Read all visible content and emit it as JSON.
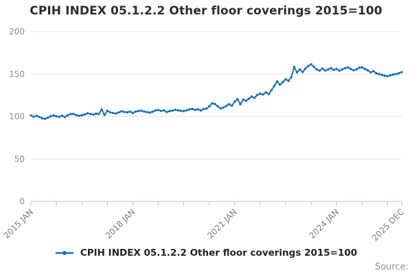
{
  "title": "CPIH INDEX 05.1.2.2 Other floor coverings 2015=100",
  "legend": {
    "label": "CPIH INDEX 05.1.2.2 Other floor coverings 2015=100"
  },
  "source_label": "Source:",
  "colors": {
    "line": "#1871b5",
    "grid": "#e5e5e5",
    "axis": "#b3bfd8",
    "y_tick_label": "#898989",
    "x_tick_label": "#7c7c7c",
    "title_text": "#2d2d2d"
  },
  "chart_data": {
    "type": "line",
    "title": "CPIH INDEX 05.1.2.2 Other floor coverings 2015=100",
    "xlabel": "",
    "ylabel": "",
    "grid": true,
    "legend_position": "bottom",
    "ylim": [
      0,
      200
    ],
    "y_ticks": [
      0,
      50,
      100,
      150,
      200
    ],
    "x_start": "2015 JAN",
    "x_end": "2025 DEC",
    "x_frequency": "monthly",
    "x_tick_labels": [
      "2015 JAN",
      "2018 JAN",
      "2021 JAN",
      "2024 JAN",
      "2025 DEC"
    ],
    "x_tick_month_offsets": [
      0,
      36,
      72,
      108,
      131
    ],
    "minor_tick_every_months": 9,
    "series": [
      {
        "name": "CPIH INDEX 05.1.2.2 Other floor coverings 2015=100",
        "start": "2015 JAN",
        "values": [
          101.3,
          99.7,
          100.8,
          99.5,
          97.9,
          97.3,
          98.6,
          100.4,
          101.2,
          100.3,
          99.6,
          101.0,
          99.4,
          101.5,
          102.9,
          103.1,
          101.7,
          100.9,
          101.5,
          102.4,
          103.8,
          103.1,
          102.2,
          103.4,
          103.0,
          108.3,
          101.8,
          106.8,
          105.0,
          104.2,
          103.6,
          104.8,
          106.2,
          105.4,
          104.9,
          105.8,
          104.2,
          105.8,
          106.4,
          106.9,
          105.8,
          105.2,
          104.7,
          105.7,
          107.2,
          107.6,
          106.6,
          107.3,
          105.3,
          106.4,
          107.0,
          107.9,
          107.3,
          106.8,
          106.3,
          107.4,
          108.4,
          108.9,
          107.8,
          108.6,
          107.1,
          108.8,
          109.2,
          112.0,
          115.5,
          114.8,
          112.0,
          109.5,
          110.5,
          112.5,
          114.5,
          112.8,
          117.5,
          120.5,
          114.5,
          120.0,
          118.5,
          121.0,
          123.5,
          122.0,
          125.5,
          127.0,
          126.0,
          128.5,
          126.5,
          131.0,
          136.0,
          141.5,
          137.5,
          140.5,
          144.0,
          142.0,
          146.5,
          158.5,
          152.0,
          155.5,
          152.5,
          156.5,
          159.5,
          161.5,
          158.5,
          155.5,
          154.0,
          156.5,
          154.0,
          155.5,
          157.0,
          155.0,
          156.0,
          154.0,
          155.5,
          157.0,
          158.0,
          156.0,
          154.5,
          155.5,
          157.5,
          158.0,
          156.0,
          154.5,
          152.0,
          153.5,
          151.0,
          150.0,
          149.0,
          148.0,
          147.5,
          148.5,
          149.5,
          150.0,
          151.0,
          152.3
        ]
      }
    ]
  }
}
